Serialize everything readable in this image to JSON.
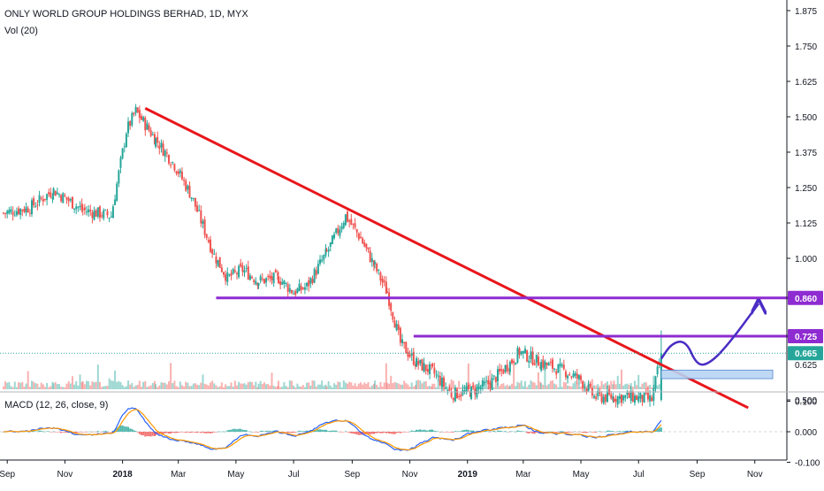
{
  "header": {
    "title": "ONLY WORLD GROUP HOLDINGS BERHAD, 1D, MYX",
    "volume_label": "Vol (20)"
  },
  "macd": {
    "label": "MACD (12, 26, close, 9)",
    "ticks": [
      "0.100",
      "0.000",
      "-0.100"
    ]
  },
  "colors": {
    "up": "#26a69a",
    "down": "#ef5350",
    "trendline": "#e8171c",
    "level": "#8e2bd1",
    "projection": "#4a2cc4",
    "zone": "#b9d4f3",
    "macd_line": "#2962ff",
    "signal_line": "#ff9800"
  },
  "chart_data": {
    "type": "candlestick",
    "ylim": [
      0.44,
      1.9
    ],
    "y_ticks": [
      "1.875",
      "1.750",
      "1.625",
      "1.500",
      "1.375",
      "1.250",
      "1.125",
      "1.000",
      "0.500"
    ],
    "x_ticks": [
      "Sep",
      "Nov",
      "2018",
      "Mar",
      "May",
      "Jul",
      "Sep",
      "Nov",
      "2019",
      "Mar",
      "May",
      "Jul",
      "Sep",
      "Nov"
    ],
    "price_labels": [
      {
        "text": "0.860",
        "value": 0.86,
        "color": "#8e2bd1"
      },
      {
        "text": "0.725",
        "value": 0.725,
        "color": "#8e2bd1"
      },
      {
        "text": "0.665",
        "value": 0.665,
        "color": "#26a69a"
      }
    ],
    "covered_ticks": [
      "0.625"
    ],
    "series": [
      {
        "name": "",
        "points": [
          [
            "2017-08-28",
            1.16
          ],
          [
            "2017-09-25",
            1.18
          ],
          [
            "2017-10-20",
            1.24
          ],
          [
            "2017-11-20",
            1.17
          ],
          [
            "2017-12-20",
            1.15
          ],
          [
            "2018-01-05",
            1.45
          ],
          [
            "2018-01-15",
            1.52
          ],
          [
            "2018-02-05",
            1.42
          ],
          [
            "2018-02-25",
            1.33
          ],
          [
            "2018-03-15",
            1.22
          ],
          [
            "2018-04-08",
            1.01
          ],
          [
            "2018-04-22",
            0.93
          ],
          [
            "2018-05-08",
            0.96
          ],
          [
            "2018-05-25",
            0.92
          ],
          [
            "2018-06-15",
            0.93
          ],
          [
            "2018-07-01",
            0.88
          ],
          [
            "2018-07-15",
            0.9
          ],
          [
            "2018-08-05",
            1.02
          ],
          [
            "2018-08-25",
            1.15
          ],
          [
            "2018-09-10",
            1.07
          ],
          [
            "2018-09-25",
            0.97
          ],
          [
            "2018-10-08",
            0.88
          ],
          [
            "2018-10-22",
            0.7
          ],
          [
            "2018-11-08",
            0.63
          ],
          [
            "2018-11-25",
            0.6
          ],
          [
            "2018-12-15",
            0.52
          ],
          [
            "2019-01-05",
            0.53
          ],
          [
            "2019-01-25",
            0.56
          ],
          [
            "2019-02-15",
            0.63
          ],
          [
            "2019-02-25",
            0.67
          ],
          [
            "2019-03-20",
            0.63
          ],
          [
            "2019-04-15",
            0.6
          ],
          [
            "2019-05-01",
            0.57
          ],
          [
            "2019-05-15",
            0.51
          ],
          [
            "2019-06-05",
            0.51
          ],
          [
            "2019-06-25",
            0.51
          ],
          [
            "2019-07-15",
            0.5
          ],
          [
            "2019-07-25",
            0.665
          ]
        ]
      }
    ],
    "annotations": [
      {
        "type": "trendline",
        "from": [
          "2018-01-25",
          1.53
        ],
        "to": [
          "2019-10-25",
          0.472
        ]
      },
      {
        "type": "horizontal",
        "from": "2018-04-10",
        "to": "2019-12-15",
        "value": 0.86
      },
      {
        "type": "horizontal",
        "from": "2018-11-05",
        "to": "2019-12-15",
        "value": 0.725
      },
      {
        "type": "zone",
        "from": "2019-07-25",
        "to": "2019-11-20",
        "ylim": [
          0.575,
          0.605
        ]
      },
      {
        "type": "projection",
        "points": [
          [
            "2019-07-25",
            0.645
          ],
          [
            "2019-08-05",
            0.7
          ],
          [
            "2019-08-20",
            0.71
          ],
          [
            "2019-09-01",
            0.62
          ],
          [
            "2019-09-15",
            0.63
          ],
          [
            "2019-10-05",
            0.7
          ],
          [
            "2019-11-05",
            0.84
          ]
        ]
      }
    ]
  }
}
